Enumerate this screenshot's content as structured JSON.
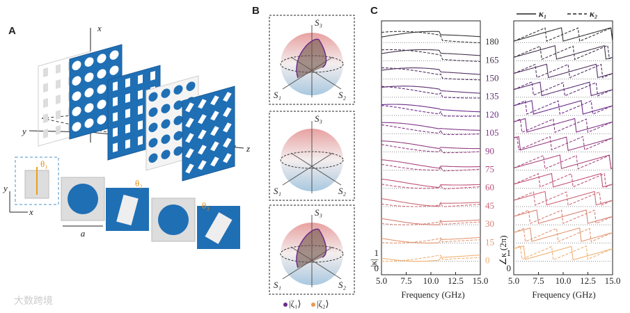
{
  "panel_a": {
    "label": "A",
    "axes": {
      "x": "x",
      "y": "y",
      "z": "z"
    },
    "angles": [
      "θ₁",
      "θ₂",
      "θ₃"
    ],
    "inset_axes": {
      "y": "y",
      "x": "x"
    },
    "period": "a"
  },
  "panel_b": {
    "label": "B",
    "spheres": [
      {
        "s3": "S₃",
        "s1": "S₁",
        "s2": "S₂"
      },
      {
        "s3": "S₃",
        "s1": "S₁",
        "s2": "S₂"
      },
      {
        "s3": "S₃",
        "s1": "S₁",
        "s2": "S₂"
      }
    ],
    "legend": [
      "|ζ₁⟩",
      "|ζ₂⟩"
    ]
  },
  "panel_c": {
    "label": "C",
    "legend": [
      "κ₁",
      "κ₂"
    ],
    "angles": [
      180,
      165,
      150,
      135,
      120,
      105,
      90,
      75,
      60,
      45,
      30,
      15,
      0
    ],
    "xticks": [
      "5.0",
      "7.5",
      "10.0",
      "12.5",
      "15.0"
    ],
    "yticks": [
      1,
      0
    ],
    "xlabel": "Frequency (GHz)",
    "ylabel_left": "|κ|",
    "ylabel_right": "∠κ (2π)"
  },
  "watermark": "大数跨境"
}
